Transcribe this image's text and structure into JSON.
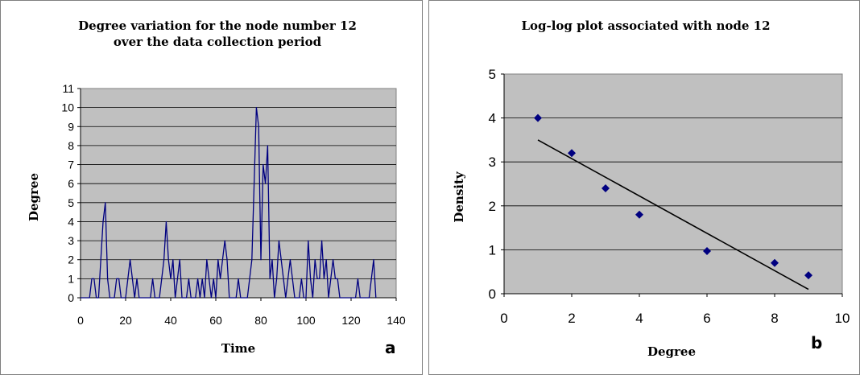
{
  "chart_data": [
    {
      "type": "line",
      "title_lines": [
        "Degree variation for the node number 12",
        "over the data collection period"
      ],
      "xlabel": "Time",
      "ylabel": "Degree",
      "xlim": [
        0,
        140
      ],
      "ylim": [
        0,
        11
      ],
      "xticks": [
        "0",
        "20",
        "40",
        "60",
        "80",
        "100",
        "120",
        "140"
      ],
      "yticks": [
        "0",
        "1",
        "2",
        "3",
        "4",
        "5",
        "6",
        "7",
        "8",
        "9",
        "10",
        "11"
      ],
      "grid": true,
      "panel_label": "a",
      "line_color": "#000080",
      "plot_bg": "#c0c0c0",
      "x": [
        0,
        1,
        2,
        3,
        4,
        5,
        6,
        7,
        8,
        9,
        10,
        11,
        12,
        13,
        14,
        15,
        16,
        17,
        18,
        19,
        20,
        21,
        22,
        23,
        24,
        25,
        26,
        27,
        28,
        29,
        30,
        31,
        32,
        33,
        34,
        35,
        36,
        37,
        38,
        39,
        40,
        41,
        42,
        43,
        44,
        45,
        46,
        47,
        48,
        49,
        50,
        51,
        52,
        53,
        54,
        55,
        56,
        57,
        58,
        59,
        60,
        61,
        62,
        63,
        64,
        65,
        66,
        67,
        68,
        69,
        70,
        71,
        72,
        73,
        74,
        75,
        76,
        77,
        78,
        79,
        80,
        81,
        82,
        83,
        84,
        85,
        86,
        87,
        88,
        89,
        90,
        91,
        92,
        93,
        94,
        95,
        96,
        97,
        98,
        99,
        100,
        101,
        102,
        103,
        104,
        105,
        106,
        107,
        108,
        109,
        110,
        111,
        112,
        113,
        114,
        115,
        116,
        117,
        118,
        119,
        120,
        121,
        122,
        123,
        124,
        125,
        126,
        127,
        128,
        129,
        130,
        131
      ],
      "y": [
        0,
        0,
        0,
        0,
        0,
        1,
        1,
        0,
        0,
        2,
        4,
        5,
        1,
        0,
        0,
        0,
        1,
        1,
        0,
        0,
        0,
        1,
        2,
        1,
        0,
        1,
        0,
        0,
        0,
        0,
        0,
        0,
        1,
        0,
        0,
        0,
        1,
        2,
        4,
        2,
        1,
        2,
        0,
        1,
        2,
        0,
        0,
        0,
        1,
        0,
        0,
        0,
        1,
        0,
        1,
        0,
        2,
        1,
        0,
        1,
        0,
        2,
        1,
        2,
        3,
        2,
        0,
        0,
        0,
        0,
        1,
        0,
        0,
        0,
        0,
        1,
        2,
        6,
        10,
        9,
        2,
        7,
        6,
        8,
        1,
        2,
        0,
        1,
        3,
        2,
        1,
        0,
        1,
        2,
        1,
        0,
        0,
        0,
        1,
        0,
        0,
        3,
        1,
        0,
        2,
        1,
        1,
        3,
        1,
        2,
        0,
        1,
        2,
        1,
        1,
        0,
        0,
        0,
        0,
        0,
        0,
        0,
        0,
        1,
        0,
        0,
        0,
        0,
        0,
        1,
        2,
        0
      ]
    },
    {
      "type": "scatter",
      "title": "Log-log plot associated with node 12",
      "xlabel": "Degree",
      "ylabel": "Density",
      "xlim": [
        0,
        10
      ],
      "ylim": [
        0,
        5
      ],
      "xticks": [
        "0",
        "2",
        "4",
        "6",
        "8",
        "10"
      ],
      "yticks": [
        "0",
        "1",
        "2",
        "3",
        "4",
        "5"
      ],
      "grid": true,
      "panel_label": "b",
      "marker_color": "#000080",
      "plot_bg": "#c0c0c0",
      "points": [
        {
          "x": 1,
          "y": 4.0
        },
        {
          "x": 2,
          "y": 3.2
        },
        {
          "x": 3,
          "y": 2.4
        },
        {
          "x": 4,
          "y": 1.8
        },
        {
          "x": 6,
          "y": 0.97
        },
        {
          "x": 8,
          "y": 0.7
        },
        {
          "x": 9,
          "y": 0.42
        }
      ],
      "trendline": {
        "x1": 1,
        "y1": 3.5,
        "x2": 9,
        "y2": 0.1
      }
    }
  ]
}
